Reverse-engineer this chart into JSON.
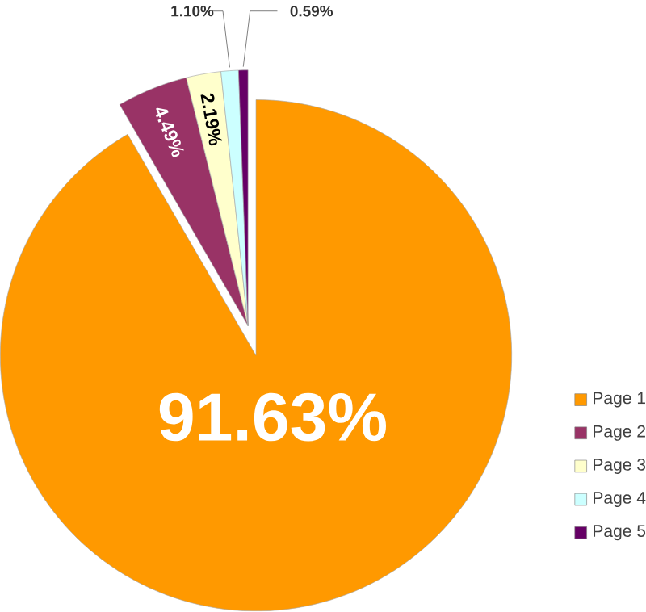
{
  "chart_data": {
    "type": "pie",
    "categories": [
      "Page 1",
      "Page 2",
      "Page 3",
      "Page 4",
      "Page 5"
    ],
    "values": [
      91.63,
      4.49,
      2.19,
      1.1,
      0.59
    ],
    "colors": [
      "#ff9900",
      "#993366",
      "#ffffcc",
      "#ccffff",
      "#660066"
    ],
    "value_labels": [
      "91.63%",
      "4.49%",
      "2.19%",
      "1.10%",
      "0.59%"
    ],
    "legend": "bottom right"
  }
}
